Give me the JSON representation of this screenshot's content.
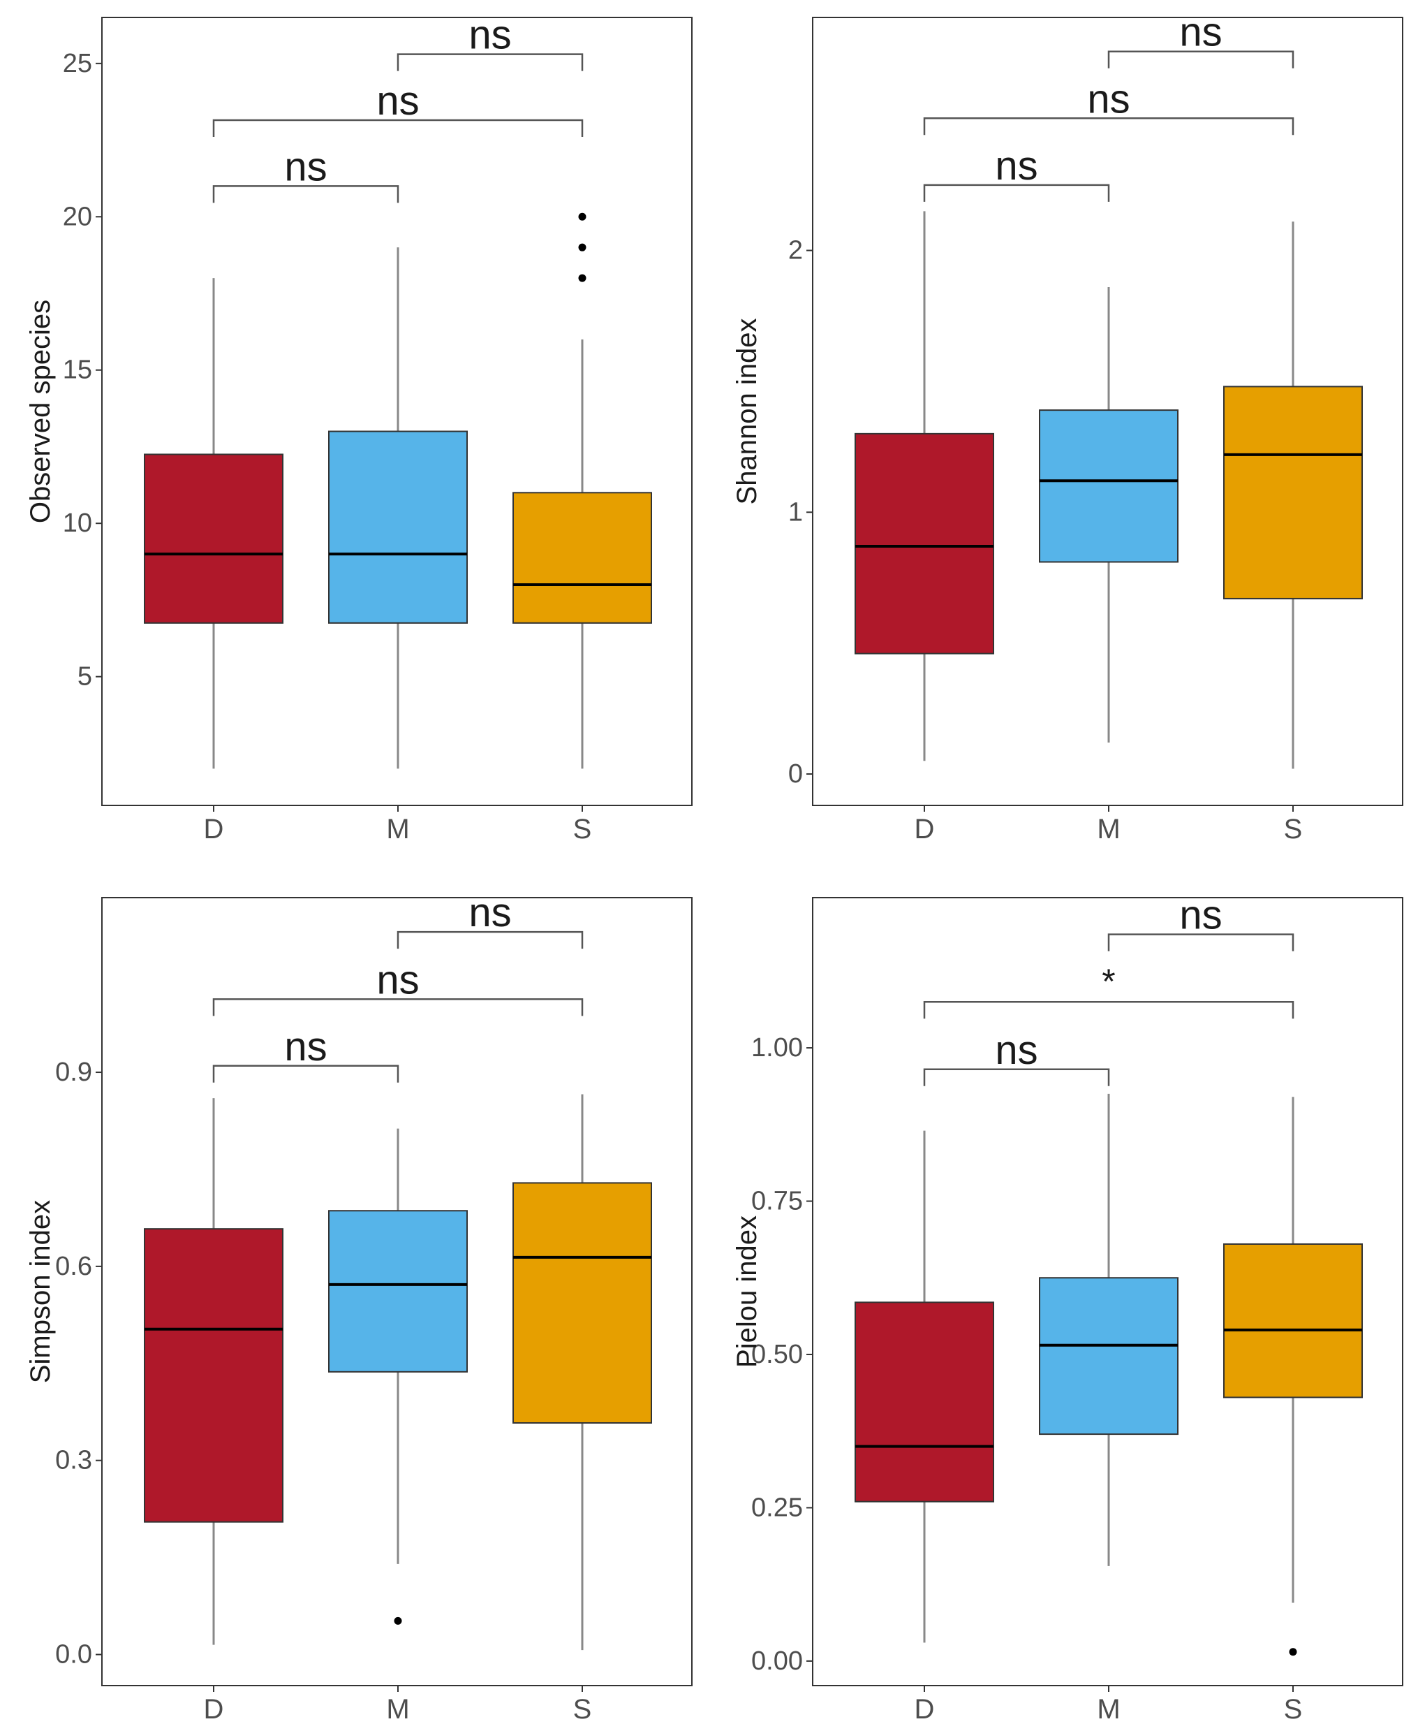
{
  "chart_data": [
    {
      "type": "boxplot",
      "ylabel": "Observed species",
      "categories": [
        "D",
        "M",
        "S"
      ],
      "ylim": [
        0.8,
        26.5
      ],
      "yticks": [
        5,
        10,
        15,
        20,
        25
      ],
      "ytick_labels": [
        "5",
        "10",
        "15",
        "20",
        "25"
      ],
      "boxes": [
        {
          "group": "D",
          "min": 2,
          "q1": 6.75,
          "median": 9,
          "q3": 12.25,
          "max": 18,
          "outliers": []
        },
        {
          "group": "M",
          "min": 2,
          "q1": 6.75,
          "median": 9,
          "q3": 13,
          "max": 19,
          "outliers": []
        },
        {
          "group": "S",
          "min": 2,
          "q1": 6.75,
          "median": 8,
          "q3": 11,
          "max": 16,
          "outliers": [
            18,
            19,
            20
          ]
        }
      ],
      "comparisons": [
        {
          "from": "D",
          "to": "M",
          "y": 21,
          "label": "ns"
        },
        {
          "from": "D",
          "to": "S",
          "y": 23.15,
          "label": "ns"
        },
        {
          "from": "M",
          "to": "S",
          "y": 25.3,
          "label": "ns"
        }
      ]
    },
    {
      "type": "boxplot",
      "ylabel": "Shannon index",
      "categories": [
        "D",
        "M",
        "S"
      ],
      "ylim": [
        -0.12,
        2.89
      ],
      "yticks": [
        0,
        1,
        2
      ],
      "ytick_labels": [
        "0",
        "1",
        "2"
      ],
      "boxes": [
        {
          "group": "D",
          "min": 0.05,
          "q1": 0.46,
          "median": 0.87,
          "q3": 1.3,
          "max": 2.15,
          "outliers": []
        },
        {
          "group": "M",
          "min": 0.12,
          "q1": 0.81,
          "median": 1.12,
          "q3": 1.39,
          "max": 1.86,
          "outliers": []
        },
        {
          "group": "S",
          "min": 0.02,
          "q1": 0.67,
          "median": 1.22,
          "q3": 1.48,
          "max": 2.11,
          "outliers": []
        }
      ],
      "comparisons": [
        {
          "from": "D",
          "to": "M",
          "y": 2.25,
          "label": "ns"
        },
        {
          "from": "D",
          "to": "S",
          "y": 2.505,
          "label": "ns"
        },
        {
          "from": "M",
          "to": "S",
          "y": 2.76,
          "label": "ns"
        }
      ]
    },
    {
      "type": "boxplot",
      "ylabel": "Simpson index",
      "categories": [
        "D",
        "M",
        "S"
      ],
      "ylim": [
        -0.048,
        1.17
      ],
      "yticks": [
        0,
        0.3,
        0.6,
        0.9
      ],
      "ytick_labels": [
        "0.0",
        "0.3",
        "0.6",
        "0.9"
      ],
      "boxes": [
        {
          "group": "D",
          "min": 0.015,
          "q1": 0.205,
          "median": 0.503,
          "q3": 0.658,
          "max": 0.86,
          "outliers": []
        },
        {
          "group": "M",
          "min": 0.14,
          "q1": 0.437,
          "median": 0.572,
          "q3": 0.686,
          "max": 0.813,
          "outliers": [
            0.052
          ]
        },
        {
          "group": "S",
          "min": 0.007,
          "q1": 0.358,
          "median": 0.614,
          "q3": 0.729,
          "max": 0.866,
          "outliers": []
        }
      ],
      "comparisons": [
        {
          "from": "D",
          "to": "M",
          "y": 0.91,
          "label": "ns"
        },
        {
          "from": "D",
          "to": "S",
          "y": 1.013,
          "label": "ns"
        },
        {
          "from": "M",
          "to": "S",
          "y": 1.117,
          "label": "ns"
        }
      ]
    },
    {
      "type": "boxplot",
      "ylabel": "Pielou index",
      "categories": [
        "D",
        "M",
        "S"
      ],
      "ylim": [
        -0.04,
        1.245
      ],
      "yticks": [
        0,
        0.25,
        0.5,
        0.75,
        1
      ],
      "ytick_labels": [
        "0.00",
        "0.25",
        "0.50",
        "0.75",
        "1.00"
      ],
      "boxes": [
        {
          "group": "D",
          "min": 0.03,
          "q1": 0.26,
          "median": 0.35,
          "q3": 0.585,
          "max": 0.865,
          "outliers": []
        },
        {
          "group": "M",
          "min": 0.155,
          "q1": 0.37,
          "median": 0.515,
          "q3": 0.625,
          "max": 0.925,
          "outliers": []
        },
        {
          "group": "S",
          "min": 0.095,
          "q1": 0.43,
          "median": 0.54,
          "q3": 0.68,
          "max": 0.92,
          "outliers": [
            0.015
          ]
        }
      ],
      "comparisons": [
        {
          "from": "D",
          "to": "M",
          "y": 0.965,
          "label": "ns"
        },
        {
          "from": "D",
          "to": "S",
          "y": 1.075,
          "label": "*"
        },
        {
          "from": "M",
          "to": "S",
          "y": 1.185,
          "label": "ns"
        }
      ]
    }
  ],
  "colors": {
    "D": "#AF182A",
    "M": "#56B4E9",
    "S": "#E69F00",
    "axis": "#333333",
    "whisker": "#888888"
  }
}
